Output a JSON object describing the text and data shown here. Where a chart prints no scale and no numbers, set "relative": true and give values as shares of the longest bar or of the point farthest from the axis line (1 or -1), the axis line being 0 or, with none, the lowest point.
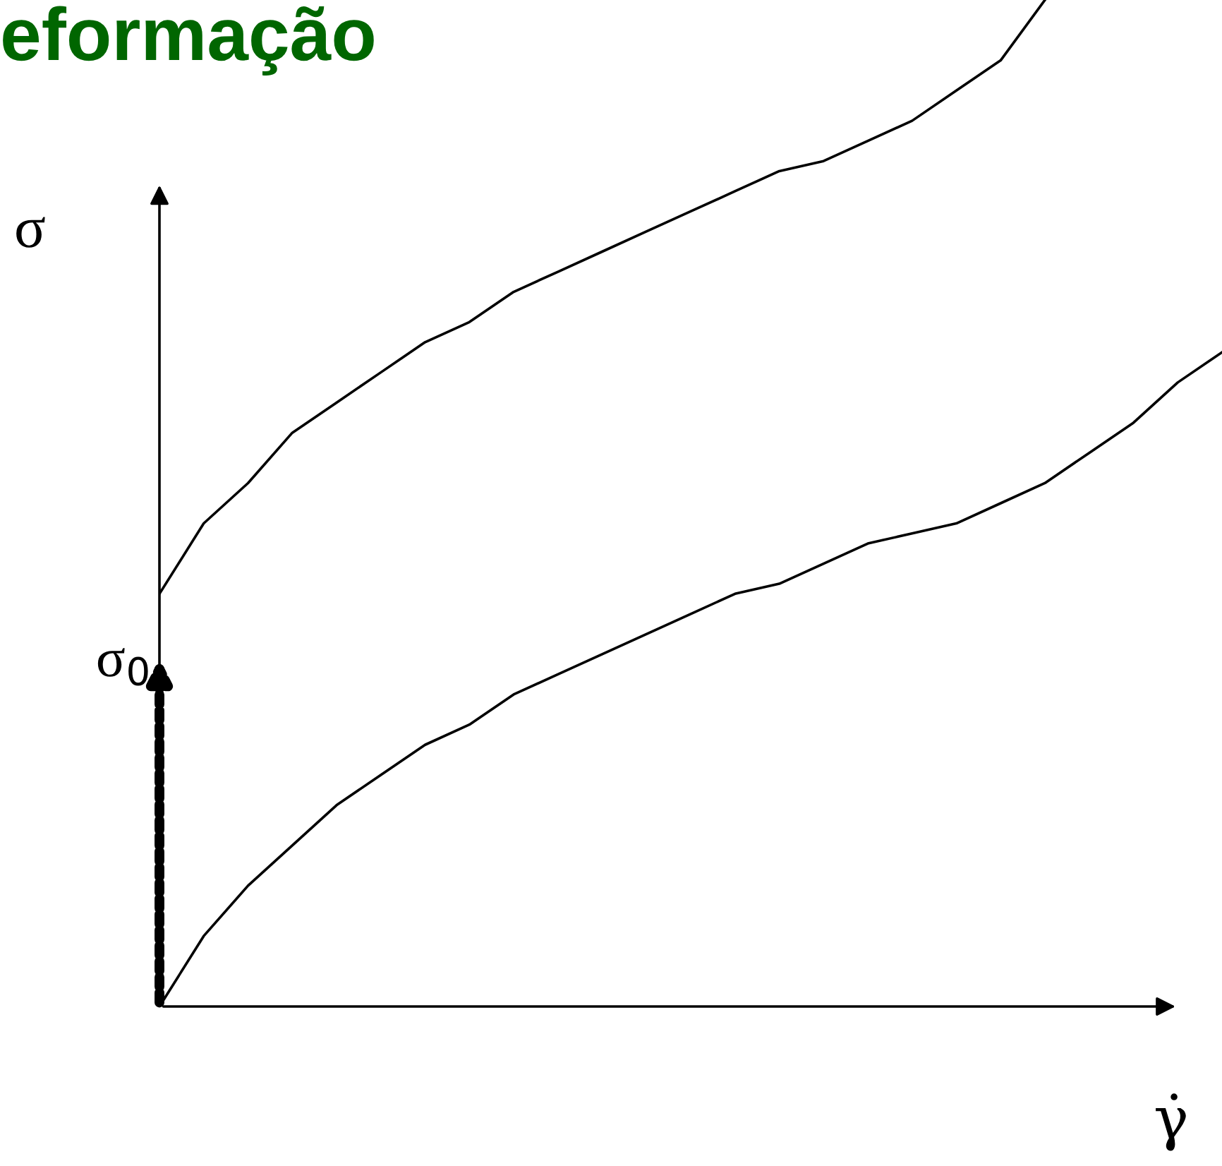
{
  "chart_data": {
    "type": "line",
    "title": "eformação",
    "xlabel": "γ̇",
    "ylabel": "σ",
    "relative": true,
    "categories": [
      null,
      null,
      null,
      null,
      null,
      null,
      null,
      null,
      null,
      null,
      null,
      null,
      null,
      null,
      null,
      null,
      null,
      null,
      null,
      null,
      null,
      null,
      null,
      null,
      null
    ],
    "series": [
      {
        "color": "#000000",
        "values": [
          0.41,
          0.48,
          0.52,
          0.57,
          0.6,
          0.63,
          0.66,
          0.68,
          0.71,
          0.73,
          0.75,
          0.77,
          0.79,
          0.81,
          0.83,
          0.84,
          0.86,
          0.88,
          0.91,
          0.94,
          1.0,
          null,
          null,
          null,
          null
        ]
      },
      {
        "color": "#000000",
        "values": [
          0,
          0.07,
          0.12,
          0.16,
          0.2,
          0.23,
          0.26,
          0.28,
          0.31,
          0.33,
          0.35,
          0.37,
          0.39,
          0.41,
          0.42,
          0.44,
          0.46,
          0.47,
          0.48,
          0.5,
          0.52,
          0.55,
          0.58,
          0.62,
          0.65
        ]
      }
    ],
    "annotations": [
      "σ$_{0}$"
    ]
  }
}
